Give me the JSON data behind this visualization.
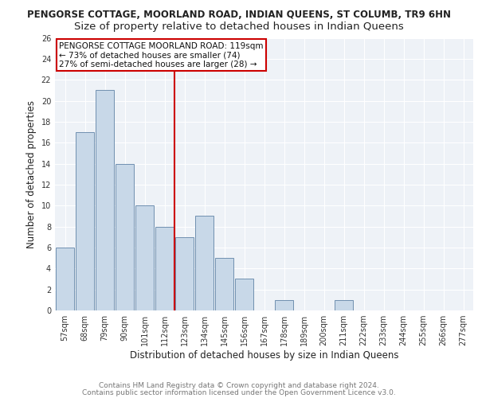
{
  "title": "PENGORSE COTTAGE, MOORLAND ROAD, INDIAN QUEENS, ST COLUMB, TR9 6HN",
  "subtitle": "Size of property relative to detached houses in Indian Queens",
  "xlabel": "Distribution of detached houses by size in Indian Queens",
  "ylabel": "Number of detached properties",
  "categories": [
    "57sqm",
    "68sqm",
    "79sqm",
    "90sqm",
    "101sqm",
    "112sqm",
    "123sqm",
    "134sqm",
    "145sqm",
    "156sqm",
    "167sqm",
    "178sqm",
    "189sqm",
    "200sqm",
    "211sqm",
    "222sqm",
    "233sqm",
    "244sqm",
    "255sqm",
    "266sqm",
    "277sqm"
  ],
  "values": [
    6,
    17,
    21,
    14,
    10,
    8,
    7,
    9,
    5,
    3,
    0,
    1,
    0,
    0,
    1,
    0,
    0,
    0,
    0,
    0,
    0
  ],
  "bar_color": "#c8d8e8",
  "bar_edge_color": "#7090b0",
  "vline_x": 5.5,
  "vline_color": "#cc0000",
  "annotation_text": "PENGORSE COTTAGE MOORLAND ROAD: 119sqm\n← 73% of detached houses are smaller (74)\n27% of semi-detached houses are larger (28) →",
  "annotation_box_color": "#ffffff",
  "annotation_box_edge_color": "#cc0000",
  "ylim": [
    0,
    26
  ],
  "yticks": [
    0,
    2,
    4,
    6,
    8,
    10,
    12,
    14,
    16,
    18,
    20,
    22,
    24,
    26
  ],
  "footer_line1": "Contains HM Land Registry data © Crown copyright and database right 2024.",
  "footer_line2": "Contains public sector information licensed under the Open Government Licence v3.0.",
  "title_fontsize": 8.5,
  "subtitle_fontsize": 9.5,
  "axis_label_fontsize": 8.5,
  "tick_fontsize": 7,
  "annotation_fontsize": 7.5,
  "footer_fontsize": 6.5,
  "background_color": "#eef2f7",
  "grid_color": "#ffffff",
  "fig_bg": "#ffffff"
}
